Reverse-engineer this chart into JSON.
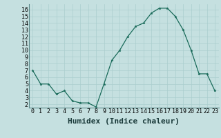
{
  "x": [
    0,
    1,
    2,
    3,
    4,
    5,
    6,
    7,
    8,
    9,
    10,
    11,
    12,
    13,
    14,
    15,
    16,
    17,
    18,
    19,
    20,
    21,
    22,
    23
  ],
  "y": [
    7,
    5,
    5,
    3.5,
    4,
    2.5,
    2.2,
    2.2,
    1.6,
    5,
    8.5,
    10,
    12,
    13.5,
    14,
    15.5,
    16.2,
    16.2,
    15,
    13,
    10,
    6.5,
    6.5,
    4
  ],
  "line_color": "#1a6b5a",
  "bg_color": "#c5e0e0",
  "grid_color": "#aacece",
  "xlabel": "Humidex (Indice chaleur)",
  "xlim": [
    -0.5,
    23.5
  ],
  "ylim": [
    1.5,
    16.8
  ],
  "yticks": [
    2,
    3,
    4,
    5,
    6,
    7,
    8,
    9,
    10,
    11,
    12,
    13,
    14,
    15,
    16
  ],
  "xticks": [
    0,
    1,
    2,
    3,
    4,
    5,
    6,
    7,
    8,
    9,
    10,
    11,
    12,
    13,
    14,
    15,
    16,
    17,
    18,
    19,
    20,
    21,
    22,
    23
  ],
  "font_size": 6,
  "marker_size": 2.5,
  "linewidth": 0.9
}
